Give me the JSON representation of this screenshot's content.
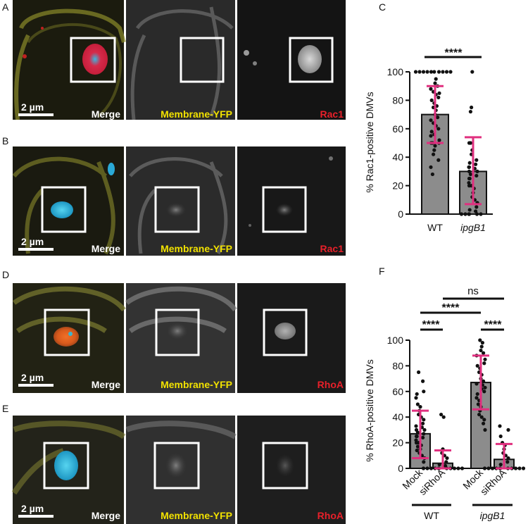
{
  "panels": {
    "A": {
      "letter": "A",
      "scalebar": "2 µm",
      "channels": [
        "Merge",
        "Membrane-YFP",
        "Rac1"
      ]
    },
    "B": {
      "letter": "B",
      "scalebar": "2 µm",
      "channels": [
        "Merge",
        "Membrane-YFP",
        "Rac1"
      ]
    },
    "D": {
      "letter": "D",
      "scalebar": "2 µm",
      "channels": [
        "Merge",
        "Membrane-YFP",
        "RhoA"
      ]
    },
    "E": {
      "letter": "E",
      "scalebar": "2 µm",
      "channels": [
        "Merge",
        "Membrane-YFP",
        "RhoA"
      ]
    }
  },
  "colors": {
    "merge_label": "#ffffff",
    "membrane_label": "#f2e200",
    "rac1_label": "#e8202a",
    "rhoa_label": "#e8202a",
    "bar_fill": "#8c8c8c",
    "error_bar": "#e0307f",
    "point": "#111111"
  },
  "chart_data": [
    {
      "panel": "C",
      "type": "bar",
      "categories": [
        "WT",
        "ipgB1"
      ],
      "values": [
        70,
        30
      ],
      "error_low": [
        50,
        7
      ],
      "error_high": [
        90,
        54
      ],
      "ylabel": "% Rac1-positive DMVs",
      "ylim": [
        0,
        100
      ],
      "yticks": [
        0,
        20,
        40,
        60,
        80,
        100
      ],
      "significance": [
        {
          "pair": [
            "WT",
            "ipgB1"
          ],
          "label": "****"
        }
      ],
      "points": [
        [
          100,
          100,
          100,
          100,
          100,
          100,
          100,
          100,
          100,
          100,
          95,
          92,
          90,
          88,
          86,
          85,
          84,
          82,
          80,
          78,
          76,
          75,
          73,
          70,
          68,
          66,
          64,
          62,
          60,
          58,
          56,
          55,
          52,
          50,
          50,
          50,
          48,
          45,
          42,
          38,
          33,
          28
        ],
        [
          100,
          75,
          72,
          50,
          50,
          45,
          42,
          38,
          36,
          35,
          33,
          33,
          32,
          30,
          30,
          28,
          27,
          25,
          25,
          22,
          20,
          20,
          18,
          15,
          12,
          10,
          8,
          5,
          3,
          2,
          0,
          0,
          0,
          0,
          0,
          0
        ]
      ]
    },
    {
      "panel": "F",
      "type": "bar",
      "categories": [
        "Mock",
        "siRhoA",
        "Mock",
        "siRhoA"
      ],
      "groups": [
        {
          "label": "WT",
          "span": [
            0,
            1
          ]
        },
        {
          "label": "ipgB1",
          "span": [
            2,
            3
          ]
        }
      ],
      "values": [
        27,
        4,
        67,
        7
      ],
      "error_low": [
        8,
        0,
        46,
        0
      ],
      "error_high": [
        45,
        14,
        88,
        19
      ],
      "ylabel": "% RhoA-positive DMVs",
      "ylim": [
        0,
        100
      ],
      "yticks": [
        0,
        20,
        40,
        60,
        80,
        100
      ],
      "significance": [
        {
          "pair": [
            0,
            1
          ],
          "label": "****"
        },
        {
          "pair": [
            2,
            3
          ],
          "label": "****"
        },
        {
          "pair": [
            0,
            2
          ],
          "label": "****"
        },
        {
          "pair": [
            1,
            3
          ],
          "label": "ns"
        }
      ],
      "points": [
        [
          75,
          68,
          60,
          58,
          55,
          50,
          48,
          45,
          42,
          40,
          38,
          35,
          33,
          32,
          30,
          30,
          28,
          27,
          25,
          25,
          24,
          22,
          20,
          20,
          18,
          17,
          15,
          14,
          12,
          10,
          8,
          5
        ],
        [
          42,
          40,
          15,
          12,
          10,
          8,
          5,
          3,
          2,
          0,
          0,
          0,
          0,
          0,
          0,
          0,
          0,
          0,
          0,
          0
        ],
        [
          100,
          98,
          95,
          92,
          90,
          88,
          85,
          82,
          80,
          78,
          75,
          73,
          70,
          68,
          66,
          65,
          63,
          62,
          60,
          58,
          55,
          53,
          50,
          48,
          45,
          42,
          40,
          38,
          35,
          30
        ],
        [
          33,
          30,
          25,
          20,
          18,
          15,
          12,
          10,
          8,
          5,
          3,
          0,
          0,
          0,
          0,
          0,
          0,
          0,
          0,
          0,
          0,
          0
        ]
      ]
    }
  ]
}
